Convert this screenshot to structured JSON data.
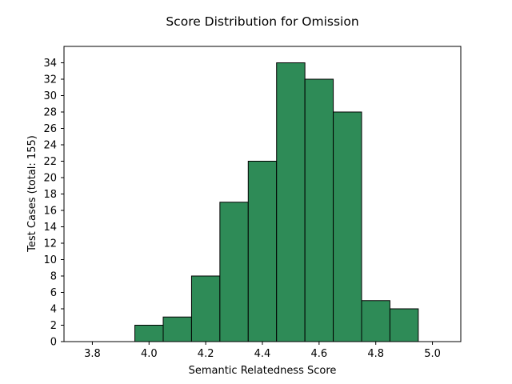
{
  "chart_data": {
    "type": "bar",
    "subtype": "histogram",
    "title": "Score Distribution for Omission",
    "xlabel": "Semantic Relatedness Score",
    "ylabel": "Test Cases (total: 155)",
    "bins": [
      {
        "start": 3.95,
        "end": 4.05,
        "count": 2
      },
      {
        "start": 4.05,
        "end": 4.15,
        "count": 3
      },
      {
        "start": 4.15,
        "end": 4.25,
        "count": 8
      },
      {
        "start": 4.25,
        "end": 4.35,
        "count": 17
      },
      {
        "start": 4.35,
        "end": 4.45,
        "count": 22
      },
      {
        "start": 4.45,
        "end": 4.55,
        "count": 34
      },
      {
        "start": 4.55,
        "end": 4.65,
        "count": 32
      },
      {
        "start": 4.65,
        "end": 4.75,
        "count": 28
      },
      {
        "start": 4.75,
        "end": 4.85,
        "count": 5
      },
      {
        "start": 4.85,
        "end": 4.95,
        "count": 4
      }
    ],
    "xlim": [
      3.7,
      5.1
    ],
    "ylim": [
      0,
      36
    ],
    "xticks": [
      "3.8",
      "4.0",
      "4.2",
      "4.4",
      "4.6",
      "4.8",
      "5.0"
    ],
    "yticks": [
      "0",
      "2",
      "4",
      "6",
      "8",
      "10",
      "12",
      "14",
      "16",
      "18",
      "20",
      "22",
      "24",
      "26",
      "28",
      "30",
      "32",
      "34"
    ],
    "bar_color": "#2e8b57",
    "edge_color": "#000000",
    "grid": false,
    "legend": "none"
  }
}
